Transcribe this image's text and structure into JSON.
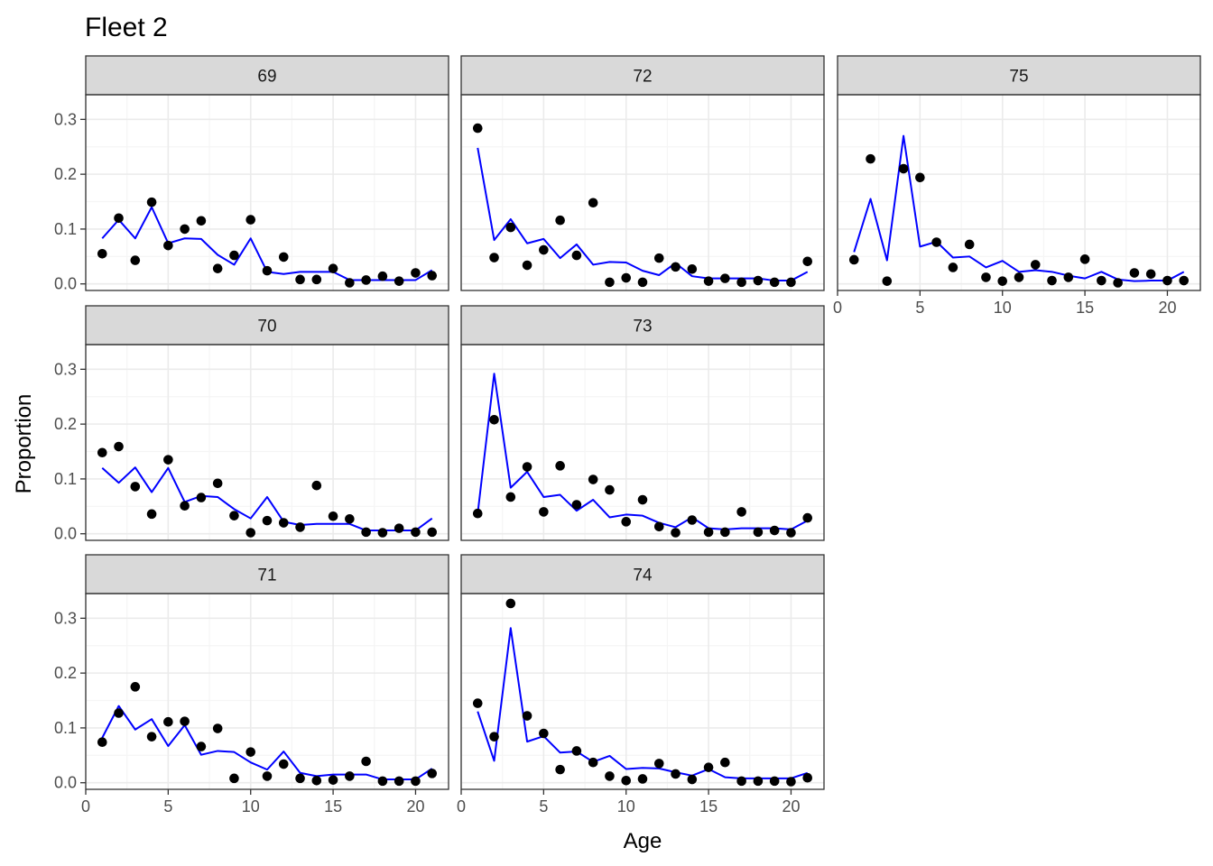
{
  "chart_data": {
    "type": "scatter",
    "title": "Fleet 2",
    "xlabel": "Age",
    "ylabel": "Proportion",
    "xlim": [
      0,
      22
    ],
    "ylim": [
      -0.012,
      0.345
    ],
    "xticks": [
      0,
      5,
      10,
      15,
      20
    ],
    "yticks": [
      0.0,
      0.1,
      0.2,
      0.3
    ],
    "ytick_labels": [
      "0.0",
      "0.1",
      "0.2",
      "0.3"
    ],
    "grid": true,
    "series_styles": {
      "observed": "points",
      "expected": "line"
    },
    "colors": {
      "observed": "#000000",
      "expected": "#0000ff",
      "strip": "#d9d9d9",
      "panel_border": "#333333",
      "grid_major": "#ebebeb",
      "grid_minor": "#f5f5f5"
    },
    "ages": [
      1,
      2,
      3,
      4,
      5,
      6,
      7,
      8,
      9,
      10,
      11,
      12,
      13,
      14,
      15,
      16,
      17,
      18,
      19,
      20,
      21
    ],
    "panels": [
      {
        "label": "69",
        "row": 0,
        "col": 0,
        "x_axis": false,
        "observed": [
          0.055,
          0.12,
          0.043,
          0.149,
          0.07,
          0.1,
          0.115,
          0.028,
          0.052,
          0.117,
          0.024,
          0.049,
          0.008,
          0.008,
          0.028,
          0.002,
          0.007,
          0.014,
          0.005,
          0.02,
          0.015
        ],
        "expected": [
          0.083,
          0.117,
          0.083,
          0.14,
          0.074,
          0.083,
          0.082,
          0.053,
          0.035,
          0.083,
          0.022,
          0.018,
          0.022,
          0.022,
          0.022,
          0.007,
          0.007,
          0.007,
          0.007,
          0.007,
          0.025
        ]
      },
      {
        "label": "72",
        "row": 0,
        "col": 1,
        "x_axis": false,
        "observed": [
          0.284,
          0.048,
          0.103,
          0.034,
          0.062,
          0.116,
          0.052,
          0.148,
          0.003,
          0.011,
          0.003,
          0.047,
          0.031,
          0.027,
          0.005,
          0.01,
          0.003,
          0.006,
          0.003,
          0.003,
          0.041
        ],
        "expected": [
          0.248,
          0.08,
          0.118,
          0.074,
          0.082,
          0.047,
          0.072,
          0.035,
          0.04,
          0.039,
          0.024,
          0.016,
          0.038,
          0.014,
          0.01,
          0.01,
          0.01,
          0.01,
          0.006,
          0.006,
          0.022
        ]
      },
      {
        "label": "75",
        "row": 0,
        "col": 2,
        "x_axis": true,
        "observed": [
          0.044,
          0.228,
          0.005,
          0.21,
          0.194,
          0.076,
          0.03,
          0.072,
          0.012,
          0.005,
          0.012,
          0.035,
          0.006,
          0.012,
          0.045,
          0.006,
          0.002,
          0.02,
          0.018,
          0.006,
          0.006
        ],
        "expected": [
          0.058,
          0.155,
          0.043,
          0.27,
          0.068,
          0.077,
          0.048,
          0.05,
          0.03,
          0.042,
          0.022,
          0.025,
          0.022,
          0.015,
          0.01,
          0.022,
          0.008,
          0.005,
          0.006,
          0.006,
          0.022
        ]
      },
      {
        "label": "70",
        "row": 1,
        "col": 0,
        "x_axis": false,
        "observed": [
          0.148,
          0.159,
          0.086,
          0.036,
          0.135,
          0.051,
          0.066,
          0.092,
          0.033,
          0.002,
          0.024,
          0.02,
          0.012,
          0.088,
          0.032,
          0.027,
          0.003,
          0.002,
          0.01,
          0.003,
          0.003
        ],
        "expected": [
          0.12,
          0.093,
          0.121,
          0.076,
          0.12,
          0.058,
          0.069,
          0.067,
          0.045,
          0.028,
          0.067,
          0.022,
          0.016,
          0.018,
          0.018,
          0.018,
          0.006,
          0.006,
          0.006,
          0.006,
          0.028
        ]
      },
      {
        "label": "73",
        "row": 1,
        "col": 1,
        "x_axis": false,
        "observed": [
          0.037,
          0.208,
          0.067,
          0.122,
          0.04,
          0.124,
          0.053,
          0.099,
          0.08,
          0.022,
          0.062,
          0.013,
          0.002,
          0.025,
          0.003,
          0.003,
          0.04,
          0.003,
          0.006,
          0.002,
          0.029
        ],
        "expected": [
          0.037,
          0.292,
          0.084,
          0.113,
          0.067,
          0.071,
          0.042,
          0.062,
          0.03,
          0.035,
          0.033,
          0.02,
          0.012,
          0.03,
          0.01,
          0.008,
          0.01,
          0.01,
          0.01,
          0.008,
          0.024
        ]
      },
      {
        "label": "71",
        "row": 2,
        "col": 0,
        "x_axis": true,
        "observed": [
          0.074,
          0.127,
          0.175,
          0.084,
          0.111,
          0.112,
          0.066,
          0.099,
          0.008,
          0.056,
          0.012,
          0.034,
          0.008,
          0.004,
          0.005,
          0.012,
          0.039,
          0.003,
          0.003,
          0.003,
          0.017
        ],
        "expected": [
          0.082,
          0.14,
          0.097,
          0.116,
          0.067,
          0.105,
          0.051,
          0.058,
          0.056,
          0.037,
          0.024,
          0.057,
          0.018,
          0.012,
          0.015,
          0.015,
          0.015,
          0.006,
          0.006,
          0.006,
          0.026
        ]
      },
      {
        "label": "74",
        "row": 2,
        "col": 1,
        "x_axis": true,
        "observed": [
          0.145,
          0.084,
          0.327,
          0.122,
          0.09,
          0.024,
          0.058,
          0.037,
          0.012,
          0.004,
          0.007,
          0.035,
          0.016,
          0.006,
          0.028,
          0.037,
          0.003,
          0.003,
          0.003,
          0.002,
          0.009
        ],
        "expected": [
          0.13,
          0.04,
          0.282,
          0.075,
          0.085,
          0.055,
          0.057,
          0.038,
          0.049,
          0.025,
          0.027,
          0.026,
          0.019,
          0.013,
          0.025,
          0.01,
          0.008,
          0.008,
          0.008,
          0.008,
          0.018
        ]
      }
    ]
  }
}
